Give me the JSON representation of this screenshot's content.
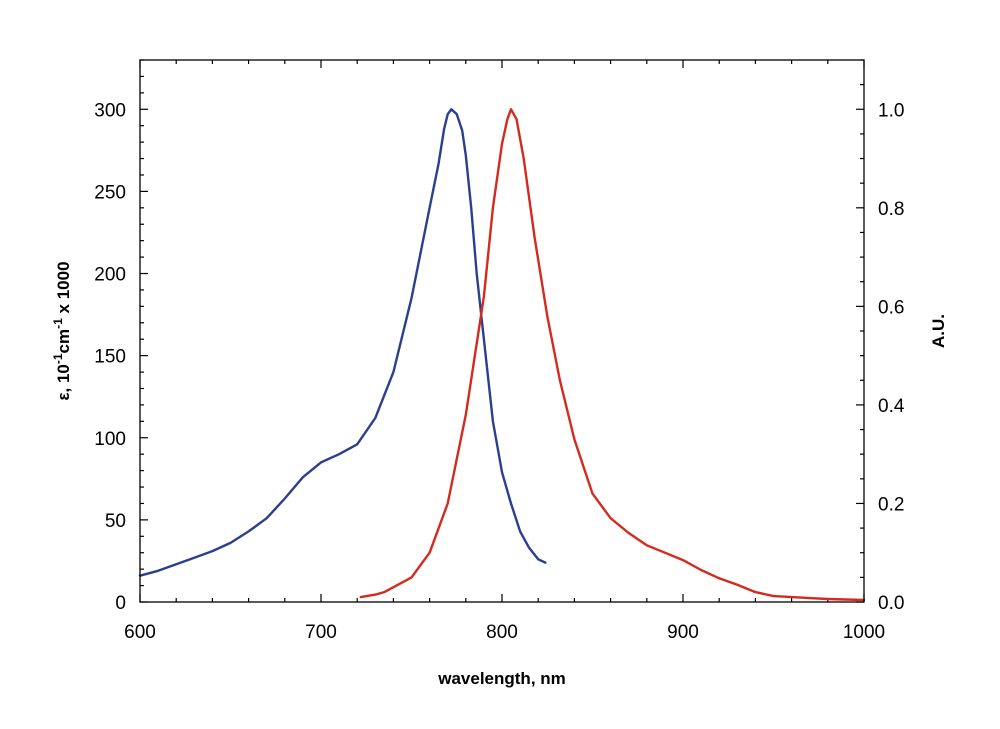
{
  "chart_data": {
    "type": "line",
    "title": "",
    "xlabel": "wavelength, nm",
    "ylabel": {
      "prefix": "ε, 10",
      "sup1": "-1",
      "mid": "cm",
      "sup2": "-1",
      "suffix": " x 1000"
    },
    "y2label": "A.U.",
    "xlim": [
      600,
      1000
    ],
    "ylim": [
      0,
      330
    ],
    "y2lim": [
      0,
      1.1
    ],
    "x_ticks": [
      "600",
      "700",
      "800",
      "900",
      "1000"
    ],
    "y_ticks": [
      "0",
      "50",
      "100",
      "150",
      "200",
      "250",
      "300"
    ],
    "y2_ticks": [
      "0.0",
      "0.2",
      "0.4",
      "0.6",
      "0.8",
      "1.0"
    ],
    "grid": false,
    "legend": "none",
    "series": [
      {
        "axis": "left",
        "color": "#2b3f8f",
        "points": [
          [
            600,
            16
          ],
          [
            610,
            19
          ],
          [
            620,
            23
          ],
          [
            630,
            27
          ],
          [
            640,
            31
          ],
          [
            650,
            36
          ],
          [
            660,
            43
          ],
          [
            670,
            51
          ],
          [
            680,
            63
          ],
          [
            690,
            76
          ],
          [
            700,
            85
          ],
          [
            710,
            90
          ],
          [
            720,
            96
          ],
          [
            730,
            112
          ],
          [
            740,
            140
          ],
          [
            750,
            185
          ],
          [
            760,
            240
          ],
          [
            765,
            267
          ],
          [
            768,
            288
          ],
          [
            770,
            297
          ],
          [
            772,
            300
          ],
          [
            775,
            297
          ],
          [
            778,
            287
          ],
          [
            780,
            272
          ],
          [
            783,
            240
          ],
          [
            786,
            200
          ],
          [
            790,
            160
          ],
          [
            795,
            110
          ],
          [
            800,
            79
          ],
          [
            805,
            60
          ],
          [
            810,
            43
          ],
          [
            815,
            33
          ],
          [
            820,
            26
          ],
          [
            824,
            24
          ]
        ]
      },
      {
        "axis": "right",
        "color": "#d42a20",
        "points": [
          [
            722,
            0.01
          ],
          [
            730,
            0.015
          ],
          [
            735,
            0.02
          ],
          [
            740,
            0.03
          ],
          [
            750,
            0.05
          ],
          [
            760,
            0.1
          ],
          [
            770,
            0.2
          ],
          [
            780,
            0.38
          ],
          [
            790,
            0.62
          ],
          [
            795,
            0.8
          ],
          [
            800,
            0.93
          ],
          [
            803,
            0.98
          ],
          [
            805,
            1.0
          ],
          [
            808,
            0.98
          ],
          [
            812,
            0.9
          ],
          [
            818,
            0.74
          ],
          [
            825,
            0.58
          ],
          [
            832,
            0.45
          ],
          [
            840,
            0.33
          ],
          [
            850,
            0.22
          ],
          [
            860,
            0.17
          ],
          [
            870,
            0.14
          ],
          [
            880,
            0.115
          ],
          [
            890,
            0.1
          ],
          [
            900,
            0.085
          ],
          [
            910,
            0.065
          ],
          [
            920,
            0.048
          ],
          [
            930,
            0.035
          ],
          [
            940,
            0.02
          ],
          [
            950,
            0.012
          ],
          [
            960,
            0.01
          ],
          [
            970,
            0.008
          ],
          [
            980,
            0.006
          ],
          [
            990,
            0.005
          ],
          [
            1000,
            0.004
          ]
        ]
      }
    ]
  }
}
